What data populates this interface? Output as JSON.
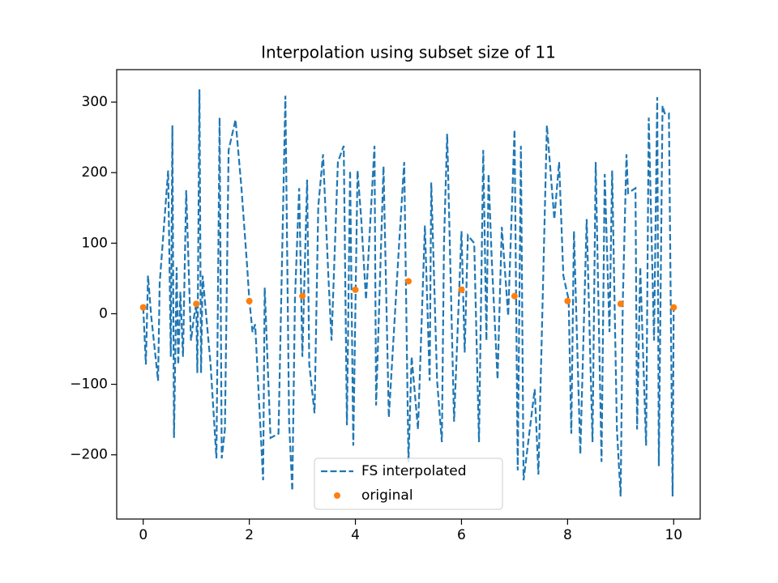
{
  "chart_data": {
    "type": "line",
    "title": "Interpolation using subset size of 11",
    "series": [
      {
        "name": "FS interpolated",
        "color": "#1f77b4",
        "style": "dashed",
        "x": [
          0,
          0.05,
          0.09,
          0.15,
          0.28,
          0.31,
          0.47,
          0.52,
          0.55,
          0.58,
          0.63,
          0.66,
          0.7,
          0.75,
          0.81,
          0.9,
          0.96,
          1.0,
          1.02,
          1.06,
          1.09,
          1.12,
          1.27,
          1.38,
          1.44,
          1.48,
          1.54,
          1.61,
          1.74,
          1.85,
          1.96,
          2.0,
          2.06,
          2.11,
          2.26,
          2.29,
          2.4,
          2.55,
          2.68,
          2.75,
          2.81,
          2.86,
          2.94,
          3.0,
          3.09,
          3.13,
          3.23,
          3.3,
          3.39,
          3.49,
          3.55,
          3.67,
          3.78,
          3.84,
          3.9,
          3.96,
          4.04,
          4.11,
          4.2,
          4.36,
          4.39,
          4.53,
          4.63,
          4.82,
          4.92,
          5.0,
          5.06,
          5.18,
          5.31,
          5.4,
          5.43,
          5.54,
          5.63,
          5.67,
          5.73,
          5.86,
          6.0,
          6.06,
          6.12,
          6.24,
          6.33,
          6.41,
          6.47,
          6.51,
          6.57,
          6.68,
          6.76,
          6.88,
          7.0,
          7.06,
          7.12,
          7.17,
          7.38,
          7.45,
          7.61,
          7.75,
          7.84,
          7.92,
          8.02,
          8.07,
          8.12,
          8.24,
          8.36,
          8.47,
          8.53,
          8.64,
          8.7,
          8.79,
          8.84,
          8.93,
          9.0,
          9.04,
          9.11,
          9.14,
          9.28,
          9.31,
          9.37,
          9.48,
          9.53,
          9.63,
          9.69,
          9.72,
          9.79,
          9.83,
          9.91,
          9.98,
          10.0
        ],
        "values": [
          9,
          -72,
          54,
          -3,
          -95,
          43,
          203,
          -61,
          267,
          -176,
          66,
          -72,
          31,
          -61,
          175,
          -38,
          -3,
          14,
          -84,
          318,
          -84,
          54,
          -72,
          -205,
          278,
          -205,
          -164,
          232,
          275,
          180,
          66,
          20,
          -26,
          -15,
          -236,
          37,
          -176,
          -170,
          309,
          -153,
          -251,
          20,
          178,
          -61,
          190,
          -72,
          -141,
          152,
          226,
          54,
          -38,
          215,
          238,
          -158,
          203,
          -187,
          203,
          134,
          20,
          238,
          -130,
          209,
          -147,
          94,
          215,
          -210,
          -61,
          -164,
          125,
          -95,
          186,
          -95,
          -182,
          100,
          255,
          -153,
          117,
          -55,
          111,
          100,
          -182,
          232,
          -38,
          198,
          77,
          -93,
          123,
          -3,
          261,
          -222,
          238,
          -236,
          -107,
          -228,
          267,
          134,
          215,
          54,
          20,
          -170,
          117,
          -199,
          134,
          -182,
          215,
          -210,
          198,
          -26,
          203,
          -164,
          -259,
          14,
          226,
          171,
          178,
          -164,
          66,
          -187,
          278,
          -38,
          307,
          -216,
          295,
          284,
          284,
          -259,
          9
        ]
      },
      {
        "name": "original",
        "color": "#ff7f0e",
        "style": "points",
        "x": [
          0,
          1,
          2,
          3,
          4,
          5,
          6,
          7,
          8,
          9,
          10
        ],
        "values": [
          9,
          14,
          18,
          25,
          34,
          46,
          34,
          25,
          18,
          14,
          9
        ]
      }
    ],
    "xlim": [
      -0.5,
      10.5
    ],
    "ylim": [
      -291,
      346
    ],
    "xticks": [
      0,
      2,
      4,
      6,
      8,
      10
    ],
    "yticks": [
      {
        "value": -200,
        "label": "−200"
      },
      {
        "value": -100,
        "label": "−100"
      },
      0,
      100,
      200,
      300
    ],
    "legend": "lower center"
  }
}
